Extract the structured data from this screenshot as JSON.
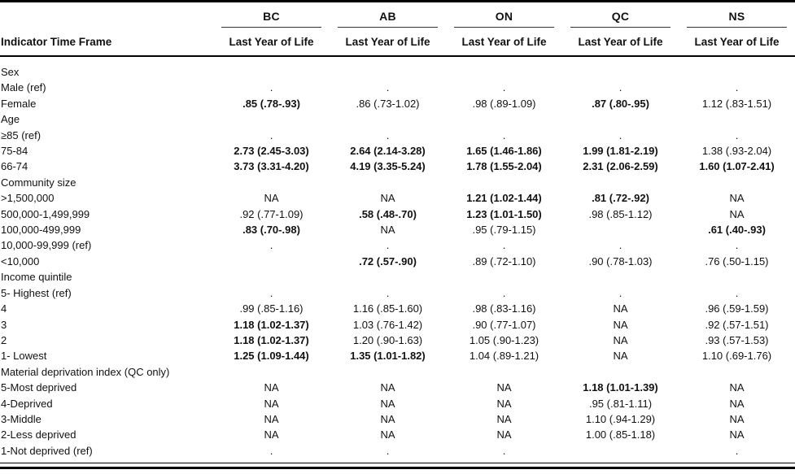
{
  "colors": {
    "text": "#111111",
    "rule": "#000000",
    "header_rule": "#333333"
  },
  "table": {
    "label_header": "Indicator Time Frame",
    "provinces": [
      "BC",
      "AB",
      "ON",
      "QC",
      "NS"
    ],
    "subheader": "Last Year of Life",
    "rows": [
      {
        "label": "Sex",
        "cells": [
          "",
          "",
          "",
          "",
          ""
        ],
        "bold": [
          false,
          false,
          false,
          false,
          false
        ]
      },
      {
        "label": "Male (ref)",
        "cells": [
          ".",
          ".",
          ".",
          ".",
          "."
        ],
        "bold": [
          false,
          false,
          false,
          false,
          false
        ]
      },
      {
        "label": "Female",
        "cells": [
          ".85 (.78-.93)",
          ".86 (.73-1.02)",
          ".98 (.89-1.09)",
          ".87 (.80-.95)",
          "1.12 (.83-1.51)"
        ],
        "bold": [
          true,
          false,
          false,
          true,
          false
        ]
      },
      {
        "label": "Age",
        "cells": [
          "",
          "",
          "",
          "",
          ""
        ],
        "bold": [
          false,
          false,
          false,
          false,
          false
        ]
      },
      {
        "label": "≥85 (ref)",
        "cells": [
          ".",
          ".",
          ".",
          ".",
          "."
        ],
        "bold": [
          false,
          false,
          false,
          false,
          false
        ]
      },
      {
        "label": "75-84",
        "cells": [
          "2.73 (2.45-3.03)",
          "2.64 (2.14-3.28)",
          "1.65 (1.46-1.86)",
          "1.99 (1.81-2.19)",
          "1.38 (.93-2.04)"
        ],
        "bold": [
          true,
          true,
          true,
          true,
          false
        ]
      },
      {
        "label": "66-74",
        "cells": [
          "3.73 (3.31-4.20)",
          "4.19 (3.35-5.24)",
          "1.78 (1.55-2.04)",
          "2.31 (2.06-2.59)",
          "1.60 (1.07-2.41)"
        ],
        "bold": [
          true,
          true,
          true,
          true,
          true
        ]
      },
      {
        "label": "Community size",
        "cells": [
          "",
          "",
          "",
          "",
          ""
        ],
        "bold": [
          false,
          false,
          false,
          false,
          false
        ]
      },
      {
        "label": ">1,500,000",
        "cells": [
          "NA",
          "NA",
          "1.21 (1.02-1.44)",
          ".81 (.72-.92)",
          "NA"
        ],
        "bold": [
          false,
          false,
          true,
          true,
          false
        ]
      },
      {
        "label": "500,000-1,499,999",
        "cells": [
          ".92 (.77-1.09)",
          ".58 (.48-.70)",
          "1.23 (1.01-1.50)",
          ".98 (.85-1.12)",
          "NA"
        ],
        "bold": [
          false,
          true,
          true,
          false,
          false
        ]
      },
      {
        "label": "100,000-499,999",
        "cells": [
          ".83 (.70-.98)",
          "NA",
          ".95 (.79-1.15)",
          "",
          ".61 (.40-.93)"
        ],
        "bold": [
          true,
          false,
          false,
          false,
          true
        ]
      },
      {
        "label": "10,000-99,999 (ref)",
        "cells": [
          ".",
          ".",
          ".",
          ".",
          "."
        ],
        "bold": [
          false,
          false,
          false,
          false,
          false
        ]
      },
      {
        "label": "<10,000",
        "cells": [
          "",
          ".72 (.57-.90)",
          ".89 (.72-1.10)",
          ".90 (.78-1.03)",
          ".76 (.50-1.15)"
        ],
        "bold": [
          false,
          true,
          false,
          false,
          false
        ]
      },
      {
        "label": "Income quintile",
        "cells": [
          "",
          "",
          "",
          "",
          ""
        ],
        "bold": [
          false,
          false,
          false,
          false,
          false
        ]
      },
      {
        "label": "5- Highest (ref)",
        "cells": [
          ".",
          ".",
          ".",
          ".",
          "."
        ],
        "bold": [
          false,
          false,
          false,
          false,
          false
        ]
      },
      {
        "label": "4",
        "cells": [
          ".99 (.85-1.16)",
          "1.16 (.85-1.60)",
          ".98 (.83-1.16)",
          "NA",
          ".96 (.59-1.59)"
        ],
        "bold": [
          false,
          false,
          false,
          false,
          false
        ]
      },
      {
        "label": "3",
        "cells": [
          "1.18 (1.02-1.37)",
          "1.03 (.76-1.42)",
          ".90 (.77-1.07)",
          "NA",
          ".92 (.57-1.51)"
        ],
        "bold": [
          true,
          false,
          false,
          false,
          false
        ]
      },
      {
        "label": "2",
        "cells": [
          "1.18 (1.02-1.37)",
          "1.20 (.90-1.63)",
          "1.05 (.90-1.23)",
          "NA",
          ".93 (.57-1.53)"
        ],
        "bold": [
          true,
          false,
          false,
          false,
          false
        ]
      },
      {
        "label": "1- Lowest",
        "cells": [
          "1.25 (1.09-1.44)",
          "1.35 (1.01-1.82)",
          "1.04 (.89-1.21)",
          "NA",
          "1.10 (.69-1.76)"
        ],
        "bold": [
          true,
          true,
          false,
          false,
          false
        ]
      },
      {
        "label": "Material deprivation index (QC only)",
        "cells": [
          "",
          "",
          "",
          "",
          ""
        ],
        "bold": [
          false,
          false,
          false,
          false,
          false
        ]
      },
      {
        "label": "5-Most deprived",
        "cells": [
          "NA",
          "NA",
          "NA",
          "1.18 (1.01-1.39)",
          "NA"
        ],
        "bold": [
          false,
          false,
          false,
          true,
          false
        ]
      },
      {
        "label": "4-Deprived",
        "cells": [
          "NA",
          "NA",
          "NA",
          ".95 (.81-1.11)",
          "NA"
        ],
        "bold": [
          false,
          false,
          false,
          false,
          false
        ]
      },
      {
        "label": "3-Middle",
        "cells": [
          "NA",
          "NA",
          "NA",
          "1.10 (.94-1.29)",
          "NA"
        ],
        "bold": [
          false,
          false,
          false,
          false,
          false
        ]
      },
      {
        "label": "2-Less deprived",
        "cells": [
          "NA",
          "NA",
          "NA",
          "1.00 (.85-1.18)",
          "NA"
        ],
        "bold": [
          false,
          false,
          false,
          false,
          false
        ]
      },
      {
        "label": "1-Not deprived (ref)",
        "cells": [
          ".",
          ".",
          ".",
          "",
          "."
        ],
        "bold": [
          false,
          false,
          false,
          false,
          false
        ]
      }
    ]
  }
}
